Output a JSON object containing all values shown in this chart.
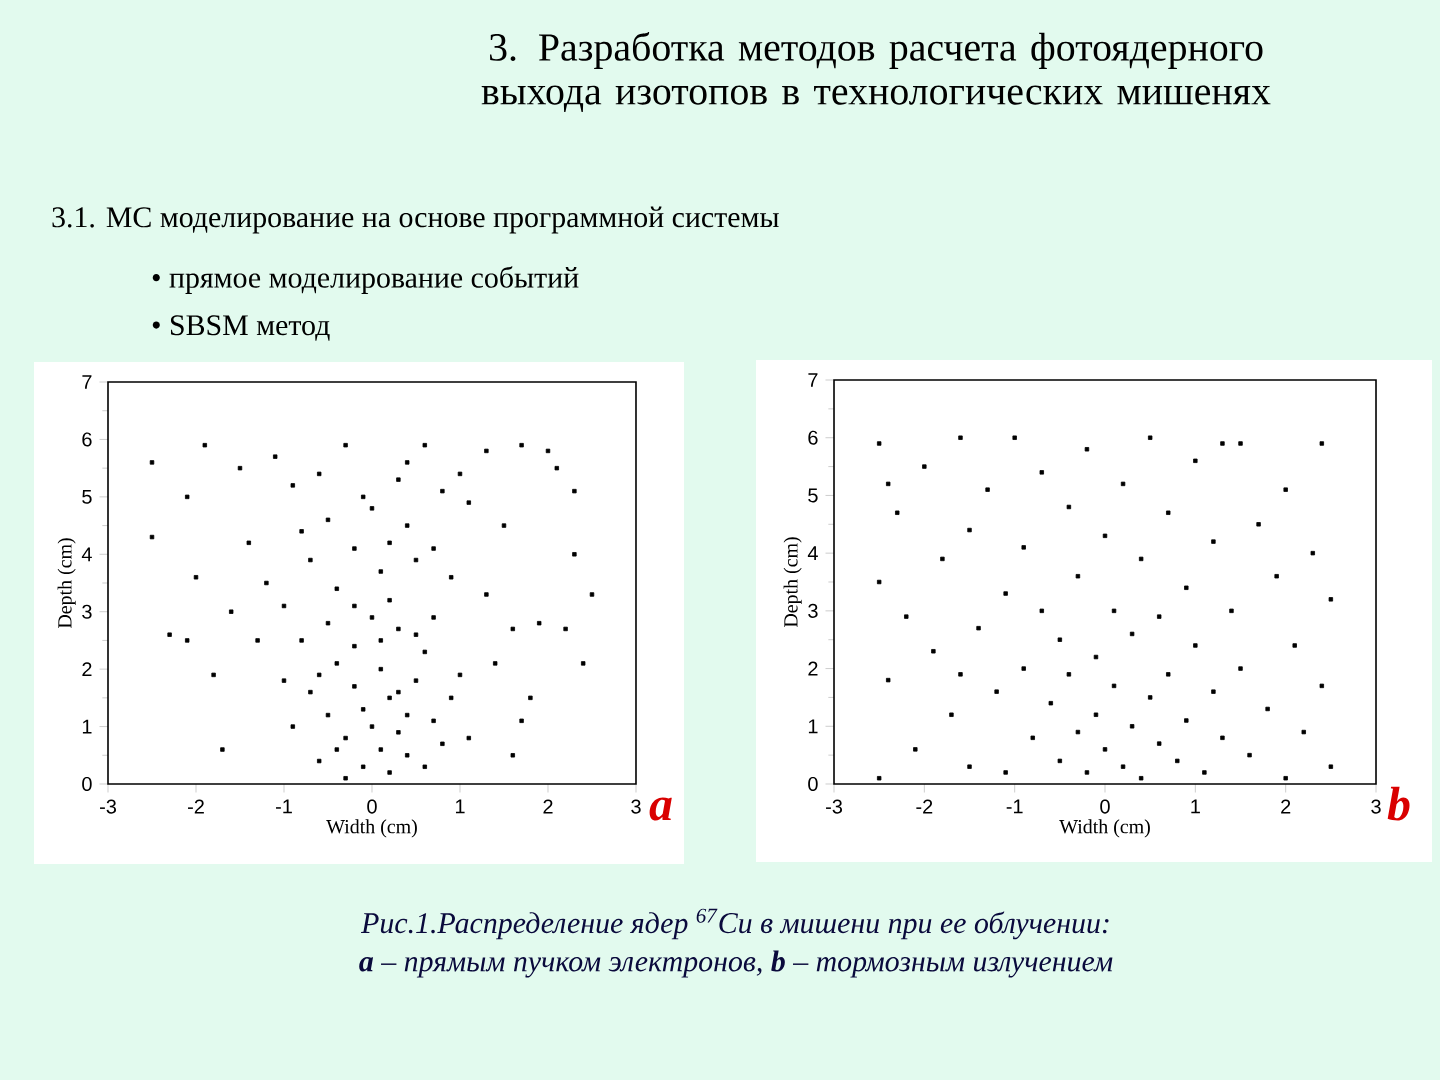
{
  "chart_data": [
    {
      "type": "scatter",
      "title": "3. Разработка методов расчета фотоядерного выхода изотопов в технологических мишенях",
      "annotations": [
        "3.1. MC моделирование на основе программной системы",
        "• прямое моделирование событий",
        "• SBSM метод",
        "a"
      ],
      "xlabel": "Width (cm)",
      "ylabel": "Depth (cm)",
      "xlim": [
        -3,
        3
      ],
      "ylim": [
        0,
        7
      ],
      "xticks": [
        -3,
        -2,
        -1,
        0,
        1,
        2,
        3
      ],
      "yticks": [
        0,
        1,
        2,
        3,
        4,
        5,
        6,
        7
      ],
      "marker": "square",
      "color": "#000000",
      "x": [
        0,
        0.2,
        -0.3,
        0.4,
        -0.5,
        0.1,
        -0.2,
        0.5,
        -0.6,
        0.7,
        -0.1,
        0.3,
        -0.4,
        0.6,
        -0.7,
        0.8,
        0.2,
        -0.2,
        0.1,
        -0.8,
        0.9,
        0,
        0.4,
        -0.3,
        0.6,
        -0.5,
        0.2,
        -0.1,
        0.3,
        -0.6,
        1,
        -0.9,
        0.5,
        0.1,
        -0.4,
        0.7,
        -0.2,
        0.3,
        1.1,
        -1,
        -1.2,
        1.3,
        0.2,
        -0.5,
        0.7,
        -0.9,
        0.4,
        -0.3,
        1,
        -1.4,
        1.5,
        0.1,
        -0.7,
        0.9,
        -0.1,
        0.6,
        -1.1,
        1.3,
        -0.4,
        0.5,
        -1.6,
        1.6,
        0,
        -0.8,
        1.1,
        -1.3,
        1.4,
        0.3,
        -0.6,
        0.8,
        -1.5,
        1.7,
        -0.2,
        0.4,
        -1,
        -2.5,
        -2.5,
        -2.3,
        -2.1,
        -2,
        -1.9,
        -1.8,
        -1.7,
        -2.1,
        2.5,
        2.4,
        2.3,
        2.3,
        2.1,
        2,
        1.9,
        1.8,
        1.6,
        2.2,
        1.7
      ],
      "values": [
        1,
        1.5,
        0.8,
        0.5,
        1.2,
        2,
        2.4,
        1.8,
        0.4,
        1.1,
        0.3,
        2.7,
        2.1,
        2.3,
        1.6,
        0.7,
        0.2,
        1.7,
        0.6,
        2.5,
        1.5,
        2.9,
        1.2,
        0.1,
        0.3,
        2.8,
        3.2,
        1.3,
        0.9,
        1.9,
        1.9,
        1,
        2.6,
        2.5,
        0.6,
        2.9,
        3.1,
        1.6,
        0.8,
        1.8,
        3.5,
        3.3,
        4.2,
        4.6,
        4.1,
        5.2,
        5.6,
        5.9,
        5.4,
        4.2,
        4.5,
        3.7,
        3.9,
        3.6,
        5,
        5.9,
        5.7,
        5.8,
        3.4,
        3.9,
        3,
        2.7,
        4.8,
        4.4,
        4.9,
        2.5,
        2.1,
        5.3,
        5.4,
        5.1,
        5.5,
        5.9,
        4.1,
        4.5,
        3.1,
        5.6,
        4.3,
        2.6,
        5,
        3.6,
        5.9,
        1.9,
        0.6,
        2.5,
        3.3,
        2.1,
        5.1,
        4,
        5.5,
        5.8,
        2.8,
        1.5,
        0.5,
        2.7,
        1.1
      ]
    },
    {
      "type": "scatter",
      "annotations": [
        "b",
        "Рис.1.Распределение ядер $^{67}$Cu в мишени при ее облучении:",
        "**a** – прямым пучком электронов,  **b** – тормозным излучением"
      ],
      "xlabel": "Width (cm)",
      "ylabel": "Depth (cm)",
      "xlim": [
        -3,
        3
      ],
      "ylim": [
        0,
        7
      ],
      "xticks": [
        -3,
        -2,
        -1,
        0,
        1,
        2,
        3
      ],
      "yticks": [
        0,
        1,
        2,
        3,
        4,
        5,
        6,
        7
      ],
      "marker": "square",
      "color": "#000000",
      "x": [
        -2.5,
        -2.5,
        -2.5,
        -2.4,
        -2.3,
        -2.2,
        -2.1,
        -2,
        -1.9,
        -1.8,
        -1.7,
        -1.6,
        -1.5,
        -1.5,
        -1.4,
        -1.3,
        -1.2,
        -1.1,
        -1.1,
        -1,
        -0.9,
        -0.9,
        -0.8,
        -0.7,
        -0.7,
        -0.6,
        -0.5,
        -0.5,
        -0.4,
        -0.4,
        -0.3,
        -0.3,
        -0.2,
        -0.2,
        -0.1,
        -0.1,
        0,
        0,
        0.1,
        0.1,
        0.2,
        0.2,
        0.3,
        0.3,
        0.4,
        0.4,
        0.5,
        0.5,
        0.6,
        0.6,
        0.7,
        0.7,
        0.8,
        0.9,
        0.9,
        1,
        1,
        1.1,
        1.2,
        1.2,
        1.3,
        1.4,
        1.5,
        1.5,
        1.6,
        1.7,
        1.8,
        1.9,
        2,
        2,
        2.1,
        2.2,
        2.3,
        2.4,
        2.4,
        2.5,
        2.5,
        -2.4,
        1.3,
        -1.6
      ],
      "values": [
        5.9,
        3.5,
        0.1,
        1.8,
        4.7,
        2.9,
        0.6,
        5.5,
        2.3,
        3.9,
        1.2,
        6,
        0.3,
        4.4,
        2.7,
        5.1,
        1.6,
        3.3,
        0.2,
        6,
        4.1,
        2,
        0.8,
        5.4,
        3,
        1.4,
        0.4,
        2.5,
        4.8,
        1.9,
        0.9,
        3.6,
        5.8,
        0.2,
        2.2,
        1.2,
        0.6,
        4.3,
        1.7,
        3,
        0.3,
        5.2,
        2.6,
        1,
        0.1,
        3.9,
        1.5,
        6,
        0.7,
        2.9,
        4.7,
        1.9,
        0.4,
        3.4,
        1.1,
        5.6,
        2.4,
        0.2,
        4.2,
        1.6,
        0.8,
        3,
        5.9,
        2,
        0.5,
        4.5,
        1.3,
        3.6,
        0.1,
        5.1,
        2.4,
        0.9,
        4,
        5.9,
        1.7,
        3.2,
        0.3,
        5.2,
        5.9,
        1.9
      ]
    }
  ]
}
